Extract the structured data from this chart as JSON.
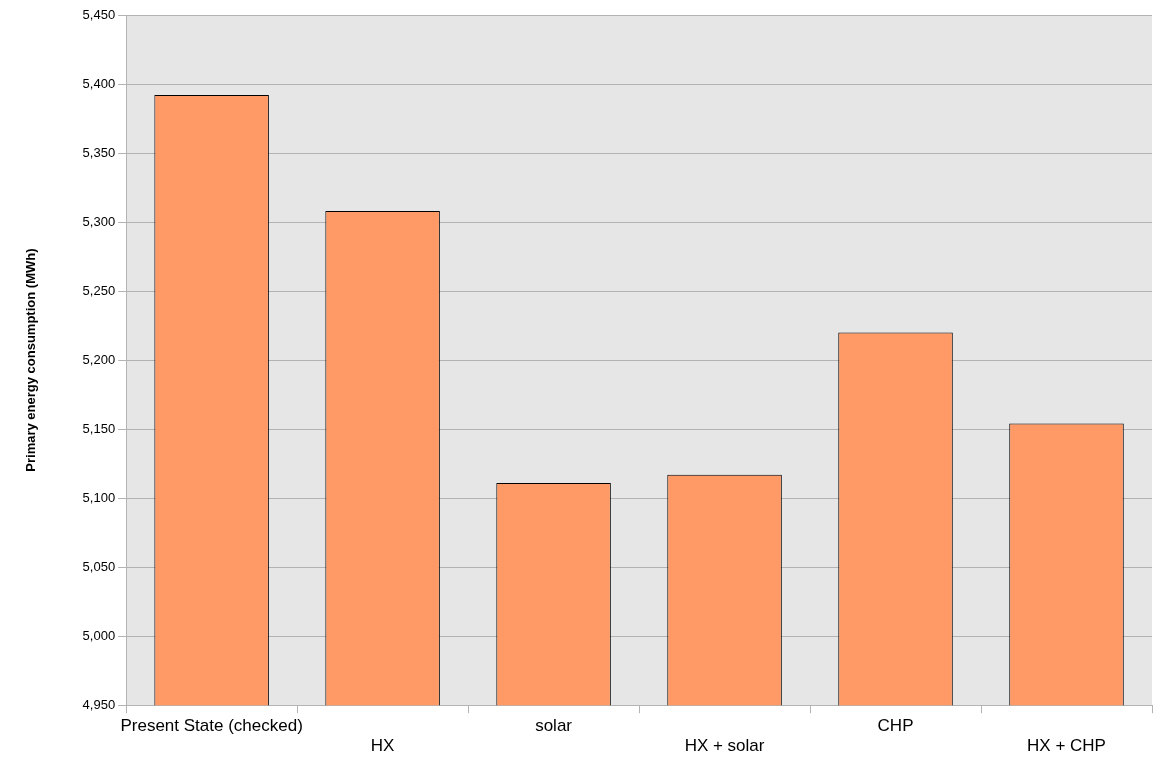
{
  "chart_data": {
    "type": "bar",
    "ylabel": "Primary energy consumption (MWh)",
    "categories": [
      "Present State (checked)",
      "HX",
      "solar",
      "HX + solar",
      "CHP",
      "HX + CHP"
    ],
    "values": [
      5392,
      5308,
      5111,
      5117,
      5220,
      5154
    ],
    "color": "#ff9966",
    "ylim": [
      4950,
      5450
    ],
    "yticks": [
      {
        "value": 4950,
        "label": "4,950"
      },
      {
        "value": 5000,
        "label": "5,000"
      },
      {
        "value": 5050,
        "label": "5,050"
      },
      {
        "value": 5100,
        "label": "5,100"
      },
      {
        "value": 5150,
        "label": "5,150"
      },
      {
        "value": 5200,
        "label": "5,200"
      },
      {
        "value": 5250,
        "label": "5,250"
      },
      {
        "value": 5300,
        "label": "5,300"
      },
      {
        "value": 5350,
        "label": "5,350"
      },
      {
        "value": 5400,
        "label": "5,400"
      },
      {
        "value": 5450,
        "label": "5,450"
      }
    ],
    "grid": "y",
    "legend": false
  }
}
